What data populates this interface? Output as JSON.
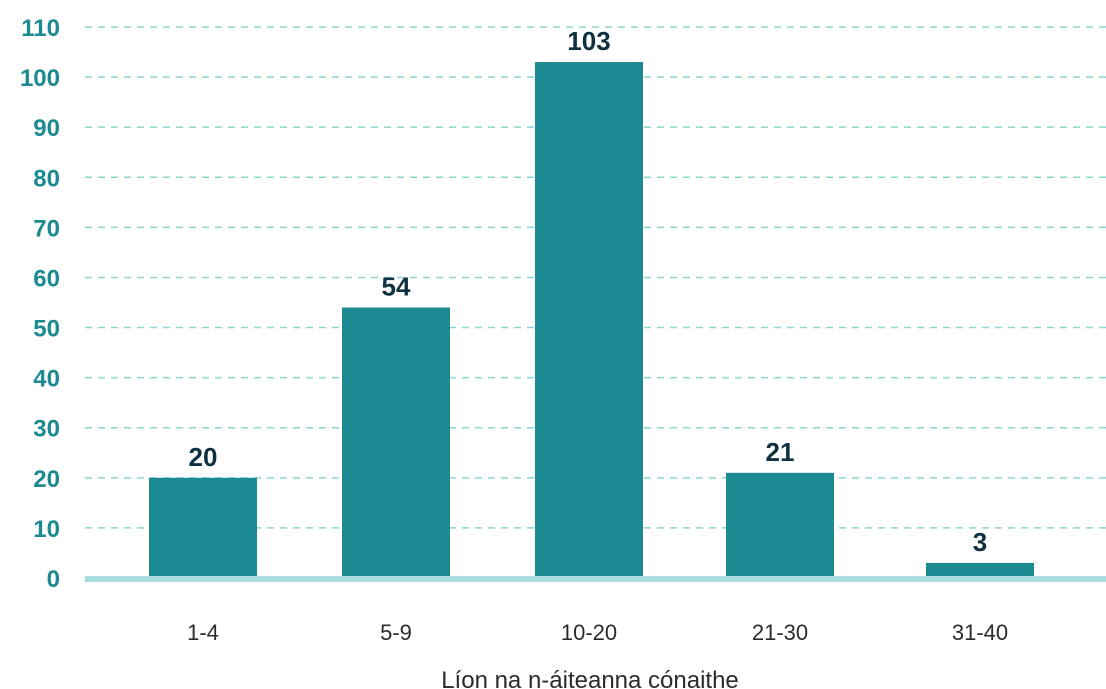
{
  "chart_data": {
    "type": "bar",
    "title": "",
    "xlabel": "Líon na n-áiteanna cónaithe",
    "ylabel": "",
    "categories": [
      "1-4",
      "5-9",
      "10-20",
      "21-30",
      "31-40"
    ],
    "values": [
      20,
      54,
      103,
      21,
      3
    ],
    "ylim": [
      0,
      110
    ],
    "yticks": [
      0,
      10,
      20,
      30,
      40,
      50,
      60,
      70,
      80,
      90,
      100,
      110
    ],
    "grid": true,
    "legend": "none",
    "colors": {
      "bar": "#1c8a91",
      "axis_tick_text": "#1c8a91",
      "data_label": "#0f3040",
      "gridline": "#8fd3d4",
      "baseline": "#a9dcdc"
    }
  }
}
